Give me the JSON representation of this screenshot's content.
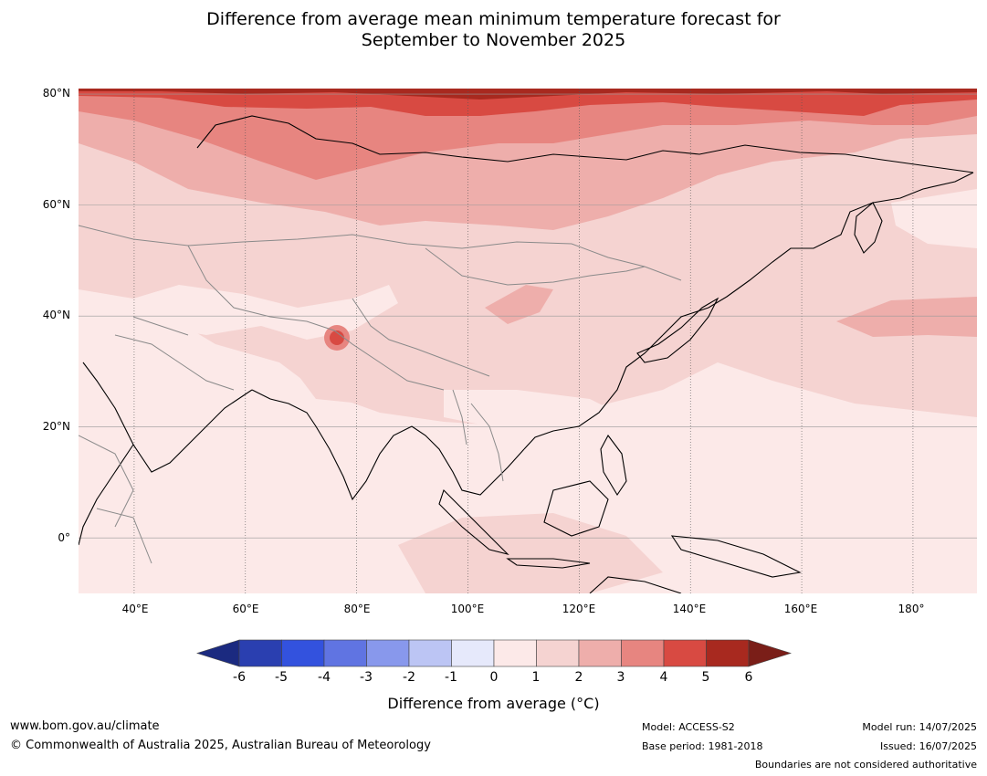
{
  "title": {
    "line1": "Difference from average mean minimum temperature forecast for",
    "line2": "September to November 2025"
  },
  "map": {
    "lat_labels": [
      "80°N",
      "60°N",
      "40°N",
      "20°N",
      "0°"
    ],
    "lon_labels": [
      "40°E",
      "60°E",
      "80°E",
      "100°E",
      "120°E",
      "140°E",
      "160°E",
      "180°"
    ],
    "lat_values": [
      80,
      60,
      40,
      20,
      0
    ],
    "lon_values": [
      40,
      60,
      80,
      100,
      120,
      140,
      160,
      180
    ],
    "extent": {
      "lon_min": 30,
      "lon_max": 191.5,
      "lat_min": -10,
      "lat_max": 81
    }
  },
  "colorbar": {
    "ticks": [
      "-6",
      "-5",
      "-4",
      "-3",
      "-2",
      "-1",
      "0",
      "1",
      "2",
      "3",
      "4",
      "5",
      "6"
    ],
    "colors": [
      "#1b2a80",
      "#2a3fb0",
      "#3352de",
      "#6074e2",
      "#8898ec",
      "#bcc5f4",
      "#e6e9fb",
      "#fce9e8",
      "#f5d3d1",
      "#eeaeab",
      "#e78580",
      "#d84a42",
      "#a8291f",
      "#7a1e18"
    ],
    "label": "Difference from average (°C)"
  },
  "footer": {
    "url": "www.bom.gov.au/climate",
    "copyright": "© Commonwealth of Australia 2025, Australian Bureau of Meteorology",
    "model": "Model: ACCESS-S2",
    "base_period": "Base period: 1981-2018",
    "model_run": "Model run: 14/07/2025",
    "issued": "Issued: 16/07/2025",
    "disclaimer": "Boundaries are not considered authoritative"
  }
}
